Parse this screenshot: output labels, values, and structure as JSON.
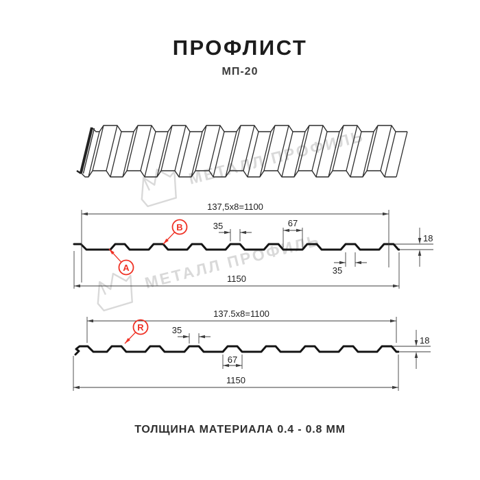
{
  "title": "ПРОФЛИСТ",
  "subtitle": "МП-20",
  "footer": "ТОЛЩИНА МАТЕРИАЛА 0.4 - 0.8 ММ",
  "watermark": {
    "text": "МЕТАЛЛ ПРОФИЛЬ",
    "color": "#d9d9d9"
  },
  "colors": {
    "profile_line": "#141414",
    "wireframe_line": "#2c2c2c",
    "dimension_line": "#3d3d3d",
    "text": "#1c1c1c",
    "accent_red": "#ef3124",
    "watermark_gray": "#d9d9d9"
  },
  "profiles": [
    {
      "name": "wall-section",
      "dims": {
        "working_width": "137,5x8=1100",
        "overall_width": "1150",
        "rib_top_width": "35",
        "valley_width": "67",
        "height": "18",
        "rib_top_width_bottom": "35"
      },
      "markers": [
        {
          "label": "A"
        },
        {
          "label": "B"
        }
      ]
    },
    {
      "name": "roof-section",
      "dims": {
        "working_width": "137.5x8=1100",
        "overall_width": "1150",
        "rib_top_width": "35",
        "rib_base_width": "67",
        "height": "18"
      },
      "markers": [
        {
          "label": "R"
        }
      ]
    }
  ]
}
